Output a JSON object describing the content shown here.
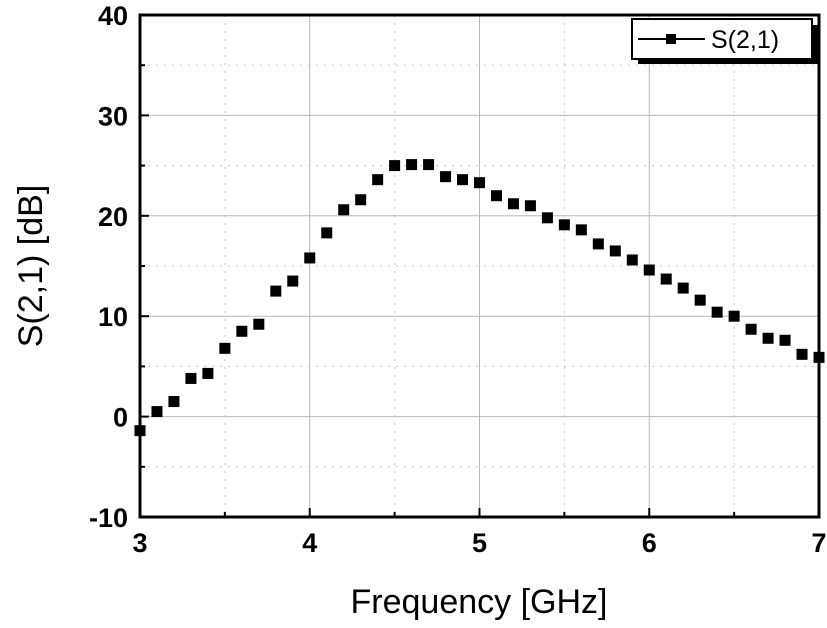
{
  "chart_data": {
    "type": "scatter",
    "xlabel": "Frequency [GHz]",
    "ylabel": "S(2,1) [dB]",
    "xlim": [
      3,
      7
    ],
    "ylim": [
      -10,
      40
    ],
    "x_ticks": [
      "3",
      "4",
      "5",
      "6",
      "7"
    ],
    "y_ticks": [
      "-10",
      "0",
      "10",
      "20",
      "30",
      "40"
    ],
    "grid": true,
    "legend_position": "top-right",
    "series": [
      {
        "name": "S(2,1)",
        "marker": "square",
        "color": "#000000",
        "x": [
          3.0,
          3.1,
          3.2,
          3.3,
          3.4,
          3.5,
          3.6,
          3.7,
          3.8,
          3.9,
          4.0,
          4.1,
          4.2,
          4.3,
          4.4,
          4.5,
          4.6,
          4.7,
          4.8,
          4.9,
          5.0,
          5.1,
          5.2,
          5.3,
          5.4,
          5.5,
          5.6,
          5.7,
          5.8,
          5.9,
          6.0,
          6.1,
          6.2,
          6.3,
          6.4,
          6.5,
          6.6,
          6.7,
          6.8,
          6.9,
          7.0
        ],
        "values": [
          -1.4,
          0.5,
          1.5,
          3.8,
          4.3,
          6.8,
          8.5,
          9.2,
          12.5,
          13.5,
          15.8,
          18.3,
          20.6,
          21.6,
          23.6,
          25.0,
          25.1,
          25.1,
          23.9,
          23.6,
          23.3,
          22.0,
          21.2,
          21.0,
          19.8,
          19.1,
          18.6,
          17.2,
          16.5,
          15.6,
          14.6,
          13.7,
          12.8,
          11.6,
          10.4,
          10.0,
          8.7,
          7.8,
          7.6,
          6.2,
          5.9
        ]
      }
    ]
  }
}
